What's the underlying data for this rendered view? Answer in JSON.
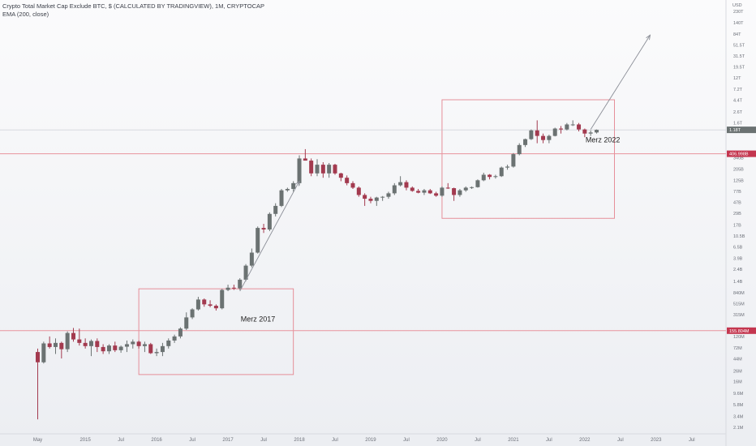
{
  "header": {
    "title": "Crypto Total Market Cap Exclude BTC, $ (CALCULATED BY TRADINGVIEW), 1M, CRYPTOCAP",
    "indicator": "EMA (200, close)"
  },
  "colors": {
    "up": "#6b7272",
    "down": "#a33a4f",
    "level_line": "#e8939d",
    "box": "#e4848f",
    "arrow": "#8a8d96",
    "level_label_bg": "#c4364f",
    "current_label_bg": "#6b7272"
  },
  "chart_data": {
    "type": "candlestick",
    "title": "Crypto Total Market Cap Exclude BTC, $ (CALCULATED BY TRADINGVIEW), 1M, CRYPTOCAP",
    "y_scale": "log",
    "y_unit": "USD",
    "y_ticks": [
      {
        "label": "230T",
        "value": 230000000000000.0
      },
      {
        "label": "140T",
        "value": 140000000000000.0
      },
      {
        "label": "84T",
        "value": 84000000000000.0
      },
      {
        "label": "51.5T",
        "value": 51500000000000.0
      },
      {
        "label": "31.5T",
        "value": 31500000000000.0
      },
      {
        "label": "19.5T",
        "value": 19500000000000.0
      },
      {
        "label": "12T",
        "value": 12000000000000.0
      },
      {
        "label": "7.2T",
        "value": 7200000000000.0
      },
      {
        "label": "4.4T",
        "value": 4400000000000.0
      },
      {
        "label": "2.6T",
        "value": 2600000000000.0
      },
      {
        "label": "1.6T",
        "value": 1600000000000.0
      },
      {
        "label": "340B",
        "value": 340000000000.0
      },
      {
        "label": "205B",
        "value": 205000000000.0
      },
      {
        "label": "125B",
        "value": 125000000000.0
      },
      {
        "label": "77B",
        "value": 77000000000.0
      },
      {
        "label": "47B",
        "value": 47000000000.0
      },
      {
        "label": "29B",
        "value": 29000000000.0
      },
      {
        "label": "17B",
        "value": 17000000000.0
      },
      {
        "label": "10.5B",
        "value": 10500000000.0
      },
      {
        "label": "6.5B",
        "value": 6500000000.0
      },
      {
        "label": "3.9B",
        "value": 3900000000.0
      },
      {
        "label": "2.4B",
        "value": 2400000000.0
      },
      {
        "label": "1.4B",
        "value": 1400000000.0
      },
      {
        "label": "840M",
        "value": 840000000.0
      },
      {
        "label": "515M",
        "value": 515000000.0
      },
      {
        "label": "315M",
        "value": 315000000.0
      },
      {
        "label": "120M",
        "value": 120000000.0
      },
      {
        "label": "72M",
        "value": 72000000.0
      },
      {
        "label": "44M",
        "value": 44000000.0
      },
      {
        "label": "26M",
        "value": 26000000.0
      },
      {
        "label": "16M",
        "value": 16000000.0
      },
      {
        "label": "9.6M",
        "value": 9600000.0
      },
      {
        "label": "5.8M",
        "value": 5800000.0
      },
      {
        "label": "3.4M",
        "value": 3400000.0
      },
      {
        "label": "2.1M",
        "value": 2100000.0
      }
    ],
    "x_ticks": [
      {
        "label": "May",
        "date": "2014-05"
      },
      {
        "label": "2015",
        "date": "2015-01"
      },
      {
        "label": "Jul",
        "date": "2015-07"
      },
      {
        "label": "2016",
        "date": "2016-01"
      },
      {
        "label": "Jul",
        "date": "2016-07"
      },
      {
        "label": "2017",
        "date": "2017-01"
      },
      {
        "label": "Jul",
        "date": "2017-07"
      },
      {
        "label": "2018",
        "date": "2018-01"
      },
      {
        "label": "Jul",
        "date": "2018-07"
      },
      {
        "label": "2019",
        "date": "2019-01"
      },
      {
        "label": "Jul",
        "date": "2019-07"
      },
      {
        "label": "2020",
        "date": "2020-01"
      },
      {
        "label": "Jul",
        "date": "2020-07"
      },
      {
        "label": "2021",
        "date": "2021-01"
      },
      {
        "label": "Jul",
        "date": "2021-07"
      },
      {
        "label": "2022",
        "date": "2022-01"
      },
      {
        "label": "Jul",
        "date": "2022-07"
      },
      {
        "label": "2023",
        "date": "2023-01"
      },
      {
        "label": "Jul",
        "date": "2023-07"
      }
    ],
    "levels": [
      {
        "value": 155000000.0,
        "label": "155.804M"
      },
      {
        "value": 406998000000.0,
        "label": "406.998B"
      }
    ],
    "current_value": {
      "value": 1180000000000.0,
      "label": "1.18T"
    },
    "boxes": [
      {
        "from": "2015-10",
        "to": "2017-12",
        "low": 22000000.0,
        "high": 1000000000.0
      },
      {
        "from": "2020-01",
        "to": "2022-06",
        "low": 23000000000.0,
        "high": 4500000000000.0
      }
    ],
    "arrows": [
      {
        "from_date": "2017-03",
        "from_value": 900000000.0,
        "to_date": "2018-01",
        "to_value": 120000000000.0
      },
      {
        "from_date": "2022-02",
        "from_value": 1200000000000.0,
        "to_date": "2022-12",
        "to_value": 80000000000000.0
      }
    ],
    "annotations": [
      {
        "text": "Merz 2017",
        "date": "2017-03",
        "value": 260000000.0
      },
      {
        "text": "Merz 2022",
        "date": "2022-01",
        "value": 750000000000.0
      }
    ],
    "candles": [
      {
        "d": "2014-05",
        "o": 60000000.0,
        "h": 70000000.0,
        "l": 3000000.0,
        "c": 38000000.0
      },
      {
        "d": "2014-06",
        "o": 38000000.0,
        "h": 95000000.0,
        "l": 36000000.0,
        "c": 88000000.0
      },
      {
        "d": "2014-07",
        "o": 88000000.0,
        "h": 120000000.0,
        "l": 70000000.0,
        "c": 75000000.0
      },
      {
        "d": "2014-08",
        "o": 75000000.0,
        "h": 110000000.0,
        "l": 55000000.0,
        "c": 90000000.0
      },
      {
        "d": "2014-09",
        "o": 90000000.0,
        "h": 95000000.0,
        "l": 45000000.0,
        "c": 68000000.0
      },
      {
        "d": "2014-10",
        "o": 68000000.0,
        "h": 150000000.0,
        "l": 60000000.0,
        "c": 140000000.0
      },
      {
        "d": "2014-11",
        "o": 140000000.0,
        "h": 175000000.0,
        "l": 95000000.0,
        "c": 105000000.0
      },
      {
        "d": "2014-12",
        "o": 105000000.0,
        "h": 170000000.0,
        "l": 80000000.0,
        "c": 90000000.0
      },
      {
        "d": "2015-01",
        "o": 90000000.0,
        "h": 110000000.0,
        "l": 70000000.0,
        "c": 78000000.0
      },
      {
        "d": "2015-02",
        "o": 78000000.0,
        "h": 105000000.0,
        "l": 50000000.0,
        "c": 98000000.0
      },
      {
        "d": "2015-03",
        "o": 98000000.0,
        "h": 110000000.0,
        "l": 60000000.0,
        "c": 75000000.0
      },
      {
        "d": "2015-04",
        "o": 75000000.0,
        "h": 85000000.0,
        "l": 55000000.0,
        "c": 62000000.0
      },
      {
        "d": "2015-05",
        "o": 62000000.0,
        "h": 85000000.0,
        "l": 55000000.0,
        "c": 80000000.0
      },
      {
        "d": "2015-06",
        "o": 80000000.0,
        "h": 95000000.0,
        "l": 60000000.0,
        "c": 65000000.0
      },
      {
        "d": "2015-07",
        "o": 65000000.0,
        "h": 80000000.0,
        "l": 58000000.0,
        "c": 76000000.0
      },
      {
        "d": "2015-08",
        "o": 76000000.0,
        "h": 100000000.0,
        "l": 60000000.0,
        "c": 85000000.0
      },
      {
        "d": "2015-09",
        "o": 85000000.0,
        "h": 105000000.0,
        "l": 70000000.0,
        "c": 95000000.0
      },
      {
        "d": "2015-10",
        "o": 95000000.0,
        "h": 100000000.0,
        "l": 70000000.0,
        "c": 78000000.0
      },
      {
        "d": "2015-11",
        "o": 78000000.0,
        "h": 95000000.0,
        "l": 60000000.0,
        "c": 85000000.0
      },
      {
        "d": "2015-12",
        "o": 85000000.0,
        "h": 90000000.0,
        "l": 55000000.0,
        "c": 57000000.0
      },
      {
        "d": "2016-01",
        "o": 57000000.0,
        "h": 70000000.0,
        "l": 50000000.0,
        "c": 60000000.0
      },
      {
        "d": "2016-02",
        "o": 60000000.0,
        "h": 90000000.0,
        "l": 50000000.0,
        "c": 78000000.0
      },
      {
        "d": "2016-03",
        "o": 78000000.0,
        "h": 110000000.0,
        "l": 70000000.0,
        "c": 100000000.0
      },
      {
        "d": "2016-04",
        "o": 100000000.0,
        "h": 130000000.0,
        "l": 90000000.0,
        "c": 120000000.0
      },
      {
        "d": "2016-05",
        "o": 120000000.0,
        "h": 180000000.0,
        "l": 110000000.0,
        "c": 170000000.0
      },
      {
        "d": "2016-06",
        "o": 170000000.0,
        "h": 350000000.0,
        "l": 160000000.0,
        "c": 280000000.0
      },
      {
        "d": "2016-07",
        "o": 280000000.0,
        "h": 420000000.0,
        "l": 260000000.0,
        "c": 400000000.0
      },
      {
        "d": "2016-08",
        "o": 400000000.0,
        "h": 700000000.0,
        "l": 380000000.0,
        "c": 620000000.0
      },
      {
        "d": "2016-09",
        "o": 620000000.0,
        "h": 650000000.0,
        "l": 450000000.0,
        "c": 500000000.0
      },
      {
        "d": "2016-10",
        "o": 500000000.0,
        "h": 600000000.0,
        "l": 440000000.0,
        "c": 470000000.0
      },
      {
        "d": "2016-11",
        "o": 470000000.0,
        "h": 500000000.0,
        "l": 380000000.0,
        "c": 420000000.0
      },
      {
        "d": "2016-12",
        "o": 420000000.0,
        "h": 1000000000.0,
        "l": 400000000.0,
        "c": 950000000.0
      },
      {
        "d": "2017-01",
        "o": 950000000.0,
        "h": 1200000000.0,
        "l": 900000000.0,
        "c": 1050000000.0
      },
      {
        "d": "2017-02",
        "o": 1050000000.0,
        "h": 1200000000.0,
        "l": 950000000.0,
        "c": 1020000000.0
      },
      {
        "d": "2017-03",
        "o": 1020000000.0,
        "h": 1600000000.0,
        "l": 950000000.0,
        "c": 1500000000.0
      },
      {
        "d": "2017-04",
        "o": 1500000000.0,
        "h": 3000000000.0,
        "l": 1400000000.0,
        "c": 2800000000.0
      },
      {
        "d": "2017-05",
        "o": 2800000000.0,
        "h": 6000000000.0,
        "l": 2600000000.0,
        "c": 5000000000.0
      },
      {
        "d": "2017-06",
        "o": 5000000000.0,
        "h": 16000000000.0,
        "l": 4800000000.0,
        "c": 15000000000.0
      },
      {
        "d": "2017-07",
        "o": 15000000000.0,
        "h": 18000000000.0,
        "l": 12000000000.0,
        "c": 14000000000.0
      },
      {
        "d": "2017-08",
        "o": 14000000000.0,
        "h": 30000000000.0,
        "l": 13000000000.0,
        "c": 28000000000.0
      },
      {
        "d": "2017-09",
        "o": 28000000000.0,
        "h": 45000000000.0,
        "l": 25000000000.0,
        "c": 40000000000.0
      },
      {
        "d": "2017-10",
        "o": 40000000000.0,
        "h": 85000000000.0,
        "l": 38000000000.0,
        "c": 80000000000.0
      },
      {
        "d": "2017-11",
        "o": 80000000000.0,
        "h": 90000000000.0,
        "l": 75000000000.0,
        "c": 85000000000.0
      },
      {
        "d": "2017-12",
        "o": 85000000000.0,
        "h": 120000000000.0,
        "l": 75000000000.0,
        "c": 110000000000.0
      },
      {
        "d": "2018-01",
        "o": 110000000000.0,
        "h": 380000000000.0,
        "l": 100000000000.0,
        "c": 330000000000.0
      },
      {
        "d": "2018-02",
        "o": 330000000000.0,
        "h": 500000000000.0,
        "l": 300000000000.0,
        "c": 300000000000.0
      },
      {
        "d": "2018-03",
        "o": 300000000000.0,
        "h": 330000000000.0,
        "l": 150000000000.0,
        "c": 170000000000.0
      },
      {
        "d": "2018-04",
        "o": 170000000000.0,
        "h": 320000000000.0,
        "l": 150000000000.0,
        "c": 250000000000.0
      },
      {
        "d": "2018-05",
        "o": 250000000000.0,
        "h": 280000000000.0,
        "l": 140000000000.0,
        "c": 170000000000.0
      },
      {
        "d": "2018-06",
        "o": 170000000000.0,
        "h": 270000000000.0,
        "l": 140000000000.0,
        "c": 250000000000.0
      },
      {
        "d": "2018-07",
        "o": 250000000000.0,
        "h": 260000000000.0,
        "l": 160000000000.0,
        "c": 170000000000.0
      },
      {
        "d": "2018-08",
        "o": 170000000000.0,
        "h": 175000000000.0,
        "l": 120000000000.0,
        "c": 140000000000.0
      },
      {
        "d": "2018-09",
        "o": 140000000000.0,
        "h": 155000000000.0,
        "l": 100000000000.0,
        "c": 110000000000.0
      },
      {
        "d": "2018-10",
        "o": 110000000000.0,
        "h": 120000000000.0,
        "l": 85000000000.0,
        "c": 90000000000.0
      },
      {
        "d": "2018-11",
        "o": 90000000000.0,
        "h": 95000000000.0,
        "l": 60000000000.0,
        "c": 65000000000.0
      },
      {
        "d": "2018-12",
        "o": 65000000000.0,
        "h": 70000000000.0,
        "l": 40000000000.0,
        "c": 55000000000.0
      },
      {
        "d": "2019-01",
        "o": 55000000000.0,
        "h": 60000000000.0,
        "l": 45000000000.0,
        "c": 50000000000.0
      },
      {
        "d": "2019-02",
        "o": 50000000000.0,
        "h": 60000000000.0,
        "l": 40000000000.0,
        "c": 58000000000.0
      },
      {
        "d": "2019-03",
        "o": 58000000000.0,
        "h": 62000000000.0,
        "l": 50000000000.0,
        "c": 60000000000.0
      },
      {
        "d": "2019-04",
        "o": 60000000000.0,
        "h": 75000000000.0,
        "l": 55000000000.0,
        "c": 70000000000.0
      },
      {
        "d": "2019-05",
        "o": 70000000000.0,
        "h": 110000000000.0,
        "l": 65000000000.0,
        "c": 100000000000.0
      },
      {
        "d": "2019-06",
        "o": 100000000000.0,
        "h": 150000000000.0,
        "l": 95000000000.0,
        "c": 115000000000.0
      },
      {
        "d": "2019-07",
        "o": 115000000000.0,
        "h": 125000000000.0,
        "l": 80000000000.0,
        "c": 90000000000.0
      },
      {
        "d": "2019-08",
        "o": 90000000000.0,
        "h": 95000000000.0,
        "l": 75000000000.0,
        "c": 78000000000.0
      },
      {
        "d": "2019-09",
        "o": 78000000000.0,
        "h": 85000000000.0,
        "l": 70000000000.0,
        "c": 72000000000.0
      },
      {
        "d": "2019-10",
        "o": 72000000000.0,
        "h": 85000000000.0,
        "l": 65000000000.0,
        "c": 80000000000.0
      },
      {
        "d": "2019-11",
        "o": 80000000000.0,
        "h": 85000000000.0,
        "l": 68000000000.0,
        "c": 70000000000.0
      },
      {
        "d": "2019-12",
        "o": 70000000000.0,
        "h": 75000000000.0,
        "l": 60000000000.0,
        "c": 63000000000.0
      },
      {
        "d": "2020-01",
        "o": 63000000000.0,
        "h": 95000000000.0,
        "l": 60000000000.0,
        "c": 90000000000.0
      },
      {
        "d": "2020-02",
        "o": 90000000000.0,
        "h": 110000000000.0,
        "l": 85000000000.0,
        "c": 88000000000.0
      },
      {
        "d": "2020-03",
        "o": 88000000000.0,
        "h": 90000000000.0,
        "l": 50000000000.0,
        "c": 65000000000.0
      },
      {
        "d": "2020-04",
        "o": 65000000000.0,
        "h": 85000000000.0,
        "l": 60000000000.0,
        "c": 80000000000.0
      },
      {
        "d": "2020-05",
        "o": 80000000000.0,
        "h": 95000000000.0,
        "l": 75000000000.0,
        "c": 90000000000.0
      },
      {
        "d": "2020-06",
        "o": 90000000000.0,
        "h": 95000000000.0,
        "l": 85000000000.0,
        "c": 92000000000.0
      },
      {
        "d": "2020-07",
        "o": 92000000000.0,
        "h": 130000000000.0,
        "l": 90000000000.0,
        "c": 125000000000.0
      },
      {
        "d": "2020-08",
        "o": 125000000000.0,
        "h": 175000000000.0,
        "l": 120000000000.0,
        "c": 160000000000.0
      },
      {
        "d": "2020-09",
        "o": 160000000000.0,
        "h": 165000000000.0,
        "l": 130000000000.0,
        "c": 145000000000.0
      },
      {
        "d": "2020-10",
        "o": 145000000000.0,
        "h": 160000000000.0,
        "l": 135000000000.0,
        "c": 150000000000.0
      },
      {
        "d": "2020-11",
        "o": 150000000000.0,
        "h": 230000000000.0,
        "l": 145000000000.0,
        "c": 220000000000.0
      },
      {
        "d": "2020-12",
        "o": 220000000000.0,
        "h": 250000000000.0,
        "l": 200000000000.0,
        "c": 230000000000.0
      },
      {
        "d": "2021-01",
        "o": 230000000000.0,
        "h": 420000000000.0,
        "l": 220000000000.0,
        "c": 400000000000.0
      },
      {
        "d": "2021-02",
        "o": 400000000000.0,
        "h": 650000000000.0,
        "l": 380000000000.0,
        "c": 600000000000.0
      },
      {
        "d": "2021-03",
        "o": 600000000000.0,
        "h": 800000000000.0,
        "l": 550000000000.0,
        "c": 780000000000.0
      },
      {
        "d": "2021-04",
        "o": 780000000000.0,
        "h": 1200000000000.0,
        "l": 750000000000.0,
        "c": 1150000000000.0
      },
      {
        "d": "2021-05",
        "o": 1150000000000.0,
        "h": 1800000000000.0,
        "l": 650000000000.0,
        "c": 900000000000.0
      },
      {
        "d": "2021-06",
        "o": 900000000000.0,
        "h": 1000000000000.0,
        "l": 650000000000.0,
        "c": 750000000000.0
      },
      {
        "d": "2021-07",
        "o": 750000000000.0,
        "h": 950000000000.0,
        "l": 650000000000.0,
        "c": 900000000000.0
      },
      {
        "d": "2021-08",
        "o": 900000000000.0,
        "h": 1300000000000.0,
        "l": 880000000000.0,
        "c": 1250000000000.0
      },
      {
        "d": "2021-09",
        "o": 1250000000000.0,
        "h": 1400000000000.0,
        "l": 1000000000000.0,
        "c": 1200000000000.0
      },
      {
        "d": "2021-10",
        "o": 1200000000000.0,
        "h": 1600000000000.0,
        "l": 1150000000000.0,
        "c": 1500000000000.0
      },
      {
        "d": "2021-11",
        "o": 1500000000000.0,
        "h": 1800000000000.0,
        "l": 1400000000000.0,
        "c": 1500000000000.0
      },
      {
        "d": "2021-12",
        "o": 1500000000000.0,
        "h": 1600000000000.0,
        "l": 1100000000000.0,
        "c": 1200000000000.0
      },
      {
        "d": "2022-01",
        "o": 1200000000000.0,
        "h": 1250000000000.0,
        "l": 850000000000.0,
        "c": 1000000000000.0
      },
      {
        "d": "2022-02",
        "o": 1000000000000.0,
        "h": 1150000000000.0,
        "l": 900000000000.0,
        "c": 1050000000000.0
      },
      {
        "d": "2022-03",
        "o": 1050000000000.0,
        "h": 1200000000000.0,
        "l": 1000000000000.0,
        "c": 1180000000000.0
      }
    ]
  }
}
